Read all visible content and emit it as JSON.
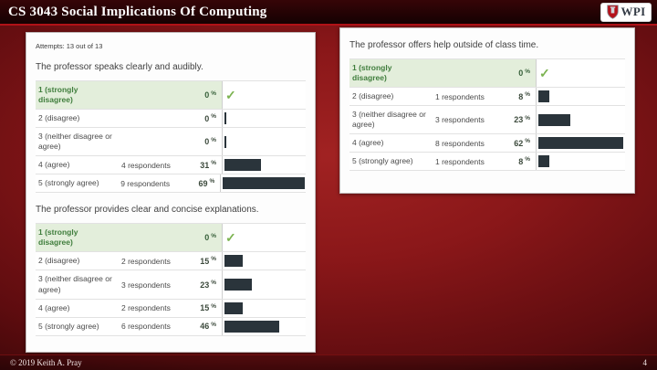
{
  "slide": {
    "title": "CS 3043 Social Implications Of Computing",
    "footer": "© 2019 Keith A. Pray",
    "page_number": "4",
    "logo_text": "WPI"
  },
  "panel_left": {
    "attempts": "Attempts: 13 out of 13"
  },
  "units": {
    "percent": "%"
  },
  "icons": {
    "check": "✓"
  },
  "chart_data": [
    {
      "type": "bar",
      "title": "The professor speaks clearly and audibly.",
      "value_unit": "%",
      "xlim": [
        0,
        100
      ],
      "rows": [
        {
          "label": "1 (strongly disagree)",
          "respondents": "",
          "percent": 0,
          "highlight": true,
          "check": true
        },
        {
          "label": "2 (disagree)",
          "respondents": "",
          "percent": 0
        },
        {
          "label": "3 (neither disagree or agree)",
          "respondents": "",
          "percent": 0
        },
        {
          "label": "4 (agree)",
          "respondents": "4 respondents",
          "percent": 31
        },
        {
          "label": "5 (strongly agree)",
          "respondents": "9 respondents",
          "percent": 69
        }
      ]
    },
    {
      "type": "bar",
      "title": "The professor provides clear and concise explanations.",
      "value_unit": "%",
      "xlim": [
        0,
        100
      ],
      "rows": [
        {
          "label": "1 (strongly disagree)",
          "respondents": "",
          "percent": 0,
          "highlight": true,
          "check": true
        },
        {
          "label": "2 (disagree)",
          "respondents": "2 respondents",
          "percent": 15
        },
        {
          "label": "3 (neither disagree or agree)",
          "respondents": "3 respondents",
          "percent": 23
        },
        {
          "label": "4 (agree)",
          "respondents": "2 respondents",
          "percent": 15
        },
        {
          "label": "5 (strongly agree)",
          "respondents": "6 respondents",
          "percent": 46
        }
      ]
    },
    {
      "type": "bar",
      "title": "The professor offers help outside of class time.",
      "value_unit": "%",
      "xlim": [
        0,
        100
      ],
      "rows": [
        {
          "label": "1 (strongly disagree)",
          "respondents": "",
          "percent": 0,
          "highlight": true,
          "check": true
        },
        {
          "label": "2 (disagree)",
          "respondents": "1 respondents",
          "percent": 8
        },
        {
          "label": "3 (neither disagree or agree)",
          "respondents": "3 respondents",
          "percent": 23
        },
        {
          "label": "4 (agree)",
          "respondents": "8 respondents",
          "percent": 62
        },
        {
          "label": "5 (strongly agree)",
          "respondents": "1 respondents",
          "percent": 8
        }
      ]
    }
  ],
  "colors": {
    "bar": "#2a343b",
    "highlight_row": "#e3eedb",
    "check_green": "#7cb351",
    "slide_red": "#8a1719",
    "accent_line": "#b01217"
  }
}
